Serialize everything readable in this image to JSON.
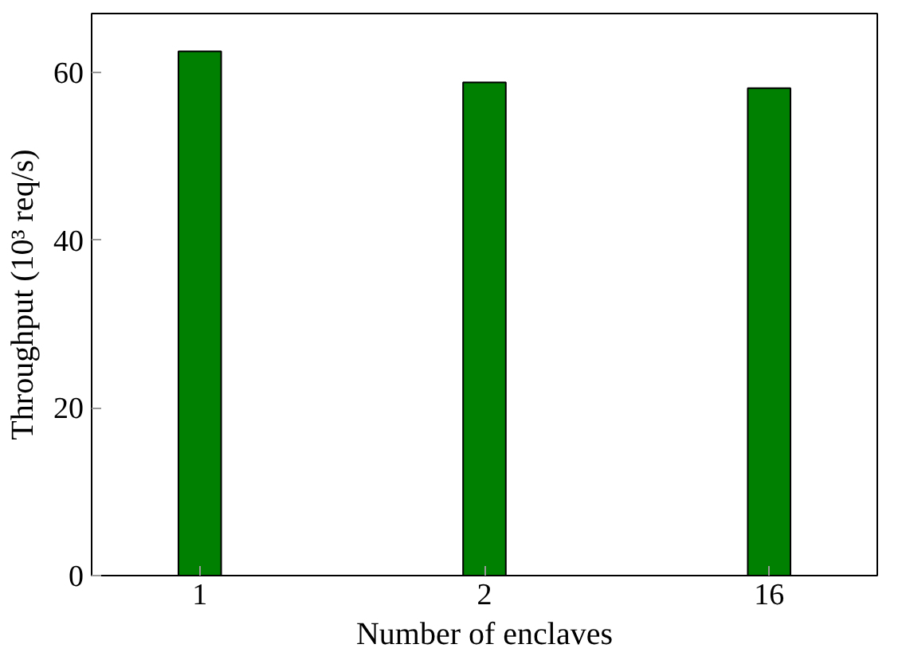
{
  "chart_data": {
    "type": "bar",
    "xlabel": "Number of enclaves",
    "ylabel": "Throughput (10³ req/s)",
    "categories": [
      "1",
      "2",
      "16"
    ],
    "series": [
      {
        "color": "#008000",
        "values": [
          62.5,
          58.8,
          58.1
        ]
      }
    ],
    "ylim": [
      0,
      67
    ],
    "yticks": [
      0,
      20,
      40,
      60
    ],
    "grid": false
  }
}
